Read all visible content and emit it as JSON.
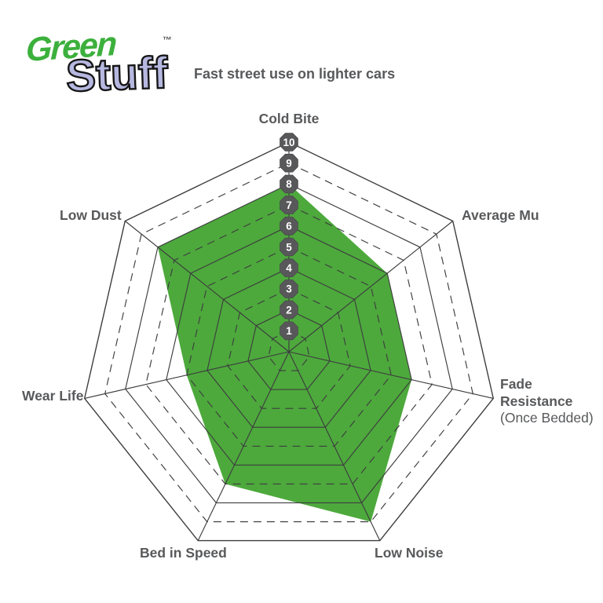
{
  "logo": {
    "word1": "Green",
    "word2": "Stuff",
    "trademark": "™",
    "word1_color": "#3CB03C",
    "word2_color": "#B6B8E0"
  },
  "subtitle": "Fast street use on lighter cars",
  "chart_data": {
    "type": "radar",
    "title": "Fast street use on lighter cars",
    "categories": [
      "Cold Bite",
      "Average Mu",
      "Fade Resistance (Once Bedded)",
      "Low Noise",
      "Bed in Speed",
      "Wear Life",
      "Low Dust"
    ],
    "series": [
      {
        "name": "GreenStuff",
        "values": [
          8,
          6,
          6,
          9,
          7,
          5,
          8
        ]
      }
    ],
    "scale": {
      "min": 0,
      "max": 10,
      "ticks": [
        "1",
        "2",
        "3",
        "4",
        "5",
        "6",
        "7",
        "8",
        "9",
        "10"
      ]
    },
    "grid": {
      "shape": "heptagon",
      "rings": 10,
      "odd_rings_dashed": true,
      "even_rings_solid": true
    },
    "legend_position": "none",
    "fill_color": "#4DA93C",
    "line_color": "#3D3D3F",
    "tick_badge_color": "#58585A",
    "tick_text_color": "#FFFFFF",
    "label_color": "#58595B"
  },
  "axis_labels": {
    "cold_bite": "Cold Bite",
    "average_mu": "Average Mu",
    "fade_line1": "Fade",
    "fade_line2": "Resistance",
    "fade_line3": "(Once Bedded)",
    "low_noise": "Low Noise",
    "bed_in_speed": "Bed in Speed",
    "wear_life": "Wear Life",
    "low_dust": "Low Dust"
  }
}
